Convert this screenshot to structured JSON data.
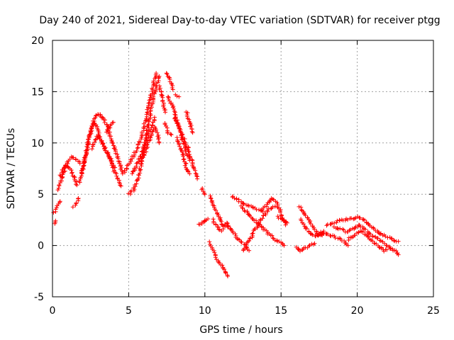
{
  "chart_data": {
    "type": "scatter",
    "title": "Day 240 of 2021, Sidereal Day-to-day VTEC variation (SDTVAR) for receiver ptgg",
    "xlabel": "GPS time / hours",
    "ylabel": "SDTVAR / TECUs",
    "xlim": [
      0,
      25
    ],
    "ylim": [
      -5,
      20
    ],
    "xticks": [
      0,
      5,
      10,
      15,
      20,
      25
    ],
    "yticks": [
      -5,
      0,
      5,
      10,
      15,
      20
    ],
    "x_tick_labels": [
      "0",
      "5",
      "10",
      "15",
      "20",
      "25"
    ],
    "y_tick_labels": [
      "-5",
      "0",
      "5",
      "10",
      "15",
      "20"
    ],
    "grid": true,
    "marker": "+",
    "series": [
      {
        "name": "SDTVAR",
        "color": "#ff0000",
        "tracks": [
          [
            [
              0.1,
              2.2
            ],
            [
              0.2,
              2.4
            ]
          ],
          [
            [
              0.1,
              3.2
            ],
            [
              0.3,
              3.8
            ],
            [
              0.5,
              4.3
            ]
          ],
          [
            [
              0.4,
              5.5
            ],
            [
              0.6,
              6.5
            ],
            [
              0.8,
              7.3
            ],
            [
              1.0,
              8.2
            ],
            [
              1.2,
              8.6
            ],
            [
              1.5,
              8.5
            ],
            [
              1.8,
              8.0
            ]
          ],
          [
            [
              0.5,
              6.8
            ],
            [
              0.7,
              7.5
            ],
            [
              0.9,
              7.9
            ],
            [
              1.1,
              7.6
            ],
            [
              1.3,
              7.0
            ],
            [
              1.5,
              6.3
            ],
            [
              1.6,
              5.9
            ]
          ],
          [
            [
              1.4,
              3.8
            ],
            [
              1.6,
              4.2
            ],
            [
              1.7,
              4.6
            ]
          ],
          [
            [
              1.8,
              6.2
            ],
            [
              2.0,
              7.5
            ],
            [
              2.2,
              9.0
            ],
            [
              2.4,
              10.5
            ],
            [
              2.6,
              11.5
            ],
            [
              2.8,
              12.5
            ],
            [
              3.0,
              12.8
            ],
            [
              3.2,
              12.5
            ]
          ],
          [
            [
              1.9,
              7.0
            ],
            [
              2.1,
              8.2
            ],
            [
              2.3,
              9.8
            ],
            [
              2.5,
              11.2
            ],
            [
              2.7,
              12.0
            ],
            [
              2.9,
              11.5
            ],
            [
              3.1,
              10.5
            ],
            [
              3.3,
              9.8
            ],
            [
              3.5,
              9.2
            ],
            [
              3.7,
              8.7
            ],
            [
              3.9,
              8.2
            ],
            [
              4.1,
              7.6
            ]
          ],
          [
            [
              2.6,
              9.5
            ],
            [
              2.8,
              10.2
            ],
            [
              3.0,
              10.8
            ],
            [
              3.3,
              10.0
            ],
            [
              3.6,
              9.0
            ],
            [
              3.9,
              7.8
            ],
            [
              4.2,
              6.8
            ],
            [
              4.5,
              5.8
            ]
          ],
          [
            [
              3.2,
              12.7
            ],
            [
              3.4,
              12.3
            ],
            [
              3.6,
              11.6
            ],
            [
              3.8,
              10.6
            ],
            [
              4.0,
              9.8
            ],
            [
              4.2,
              9.0
            ],
            [
              4.4,
              8.0
            ],
            [
              4.6,
              7.0
            ]
          ],
          [
            [
              3.6,
              11.0
            ],
            [
              3.8,
              11.8
            ],
            [
              4.0,
              12.0
            ]
          ],
          [
            [
              4.7,
              7.2
            ],
            [
              4.9,
              7.6
            ],
            [
              5.1,
              8.2
            ],
            [
              5.4,
              9.0
            ],
            [
              5.7,
              10.0
            ],
            [
              6.0,
              11.5
            ],
            [
              6.3,
              13.5
            ],
            [
              6.6,
              15.5
            ],
            [
              6.8,
              16.8
            ]
          ],
          [
            [
              5.0,
              5.0
            ],
            [
              5.3,
              5.4
            ],
            [
              5.6,
              6.5
            ],
            [
              5.9,
              8.5
            ],
            [
              6.2,
              11.0
            ],
            [
              6.5,
              13.5
            ],
            [
              6.8,
              15.5
            ],
            [
              7.0,
              16.5
            ]
          ],
          [
            [
              5.8,
              8.0
            ],
            [
              6.1,
              9.2
            ],
            [
              6.4,
              10.5
            ],
            [
              6.7,
              11.5
            ],
            [
              6.9,
              10.8
            ],
            [
              7.0,
              10.0
            ]
          ],
          [
            [
              5.2,
              7.0
            ],
            [
              5.5,
              7.8
            ],
            [
              5.8,
              8.8
            ],
            [
              6.1,
              10.0
            ],
            [
              6.4,
              11.2
            ],
            [
              6.7,
              12.5
            ]
          ],
          [
            [
              7.0,
              15.5
            ],
            [
              7.2,
              14.5
            ],
            [
              7.4,
              13.0
            ]
          ],
          [
            [
              7.4,
              12.0
            ],
            [
              7.6,
              11.0
            ],
            [
              7.8,
              10.8
            ]
          ],
          [
            [
              7.5,
              16.8
            ],
            [
              7.7,
              16.3
            ],
            [
              7.9,
              15.2
            ]
          ],
          [
            [
              7.6,
              14.5
            ],
            [
              7.8,
              13.8
            ],
            [
              8.0,
              13.0
            ],
            [
              8.2,
              12.0
            ],
            [
              8.4,
              11.0
            ],
            [
              8.6,
              10.0
            ],
            [
              8.8,
              9.0
            ],
            [
              9.0,
              8.3
            ]
          ],
          [
            [
              8.0,
              12.5
            ],
            [
              8.3,
              11.5
            ],
            [
              8.6,
              10.5
            ],
            [
              8.9,
              9.5
            ],
            [
              9.2,
              8.0
            ],
            [
              9.5,
              6.5
            ]
          ],
          [
            [
              8.2,
              10.5
            ],
            [
              8.4,
              9.5
            ],
            [
              8.6,
              8.5
            ],
            [
              8.8,
              7.5
            ],
            [
              9.0,
              7.0
            ]
          ],
          [
            [
              8.1,
              14.7
            ],
            [
              8.3,
              14.5
            ]
          ],
          [
            [
              8.8,
              13.0
            ],
            [
              9.0,
              12.0
            ],
            [
              9.2,
              11.0
            ]
          ],
          [
            [
              9.8,
              5.5
            ],
            [
              10.0,
              5.0
            ]
          ],
          [
            [
              9.6,
              2.0
            ],
            [
              9.9,
              2.3
            ],
            [
              10.2,
              2.6
            ]
          ],
          [
            [
              10.3,
              4.8
            ],
            [
              10.6,
              3.8
            ],
            [
              10.9,
              2.8
            ],
            [
              11.2,
              2.0
            ],
            [
              11.5,
              1.8
            ]
          ],
          [
            [
              10.5,
              2.5
            ],
            [
              10.8,
              1.8
            ],
            [
              11.1,
              1.5
            ],
            [
              11.4,
              2.2
            ],
            [
              11.7,
              1.6
            ],
            [
              12.0,
              1.0
            ],
            [
              12.3,
              0.5
            ],
            [
              12.6,
              0.0
            ],
            [
              12.9,
              -0.5
            ]
          ],
          [
            [
              10.3,
              0.3
            ],
            [
              10.5,
              -0.3
            ],
            [
              10.7,
              -1.0
            ],
            [
              10.9,
              -1.6
            ],
            [
              11.1,
              -2.0
            ],
            [
              11.3,
              -2.5
            ],
            [
              11.5,
              -3.0
            ]
          ],
          [
            [
              11.8,
              4.8
            ],
            [
              12.2,
              4.4
            ],
            [
              12.6,
              4.0
            ],
            [
              13.0,
              3.8
            ],
            [
              13.4,
              3.5
            ],
            [
              13.8,
              3.3
            ]
          ],
          [
            [
              12.4,
              3.8
            ],
            [
              12.8,
              3.2
            ],
            [
              13.2,
              2.6
            ],
            [
              13.6,
              2.0
            ],
            [
              14.0,
              1.4
            ],
            [
              14.4,
              0.9
            ],
            [
              14.8,
              0.4
            ],
            [
              15.2,
              0.0
            ]
          ],
          [
            [
              12.5,
              -0.5
            ],
            [
              12.8,
              0.2
            ],
            [
              13.1,
              1.0
            ],
            [
              13.4,
              1.8
            ],
            [
              13.7,
              2.6
            ],
            [
              14.0,
              3.2
            ],
            [
              14.3,
              3.6
            ],
            [
              14.6,
              3.8
            ]
          ],
          [
            [
              13.8,
              3.5
            ],
            [
              14.1,
              4.0
            ],
            [
              14.4,
              4.6
            ],
            [
              14.7,
              4.2
            ],
            [
              15.0,
              3.2
            ],
            [
              15.3,
              2.0
            ]
          ],
          [
            [
              14.8,
              2.8
            ],
            [
              15.1,
              2.5
            ],
            [
              15.4,
              2.2
            ]
          ],
          [
            [
              16.0,
              -0.2
            ],
            [
              16.3,
              -0.5
            ],
            [
              16.6,
              -0.2
            ],
            [
              16.9,
              0.0
            ],
            [
              17.2,
              0.2
            ]
          ],
          [
            [
              16.2,
              3.8
            ],
            [
              16.5,
              3.2
            ],
            [
              16.8,
              2.5
            ],
            [
              17.1,
              1.8
            ],
            [
              17.4,
              1.2
            ],
            [
              17.7,
              1.0
            ]
          ],
          [
            [
              16.3,
              2.5
            ],
            [
              16.6,
              1.8
            ],
            [
              16.9,
              1.2
            ],
            [
              17.2,
              0.9
            ],
            [
              17.5,
              1.1
            ],
            [
              17.8,
              1.4
            ]
          ],
          [
            [
              17.4,
              1.0
            ],
            [
              17.8,
              1.2
            ],
            [
              18.2,
              1.0
            ],
            [
              18.6,
              0.8
            ],
            [
              19.0,
              0.5
            ],
            [
              19.4,
              0.0
            ]
          ],
          [
            [
              18.0,
              2.0
            ],
            [
              18.4,
              2.2
            ],
            [
              18.8,
              2.4
            ],
            [
              19.2,
              2.5
            ],
            [
              19.6,
              2.6
            ],
            [
              20.0,
              2.8
            ],
            [
              20.4,
              2.5
            ],
            [
              20.8,
              2.0
            ],
            [
              21.2,
              1.5
            ],
            [
              21.6,
              1.1
            ],
            [
              22.0,
              0.8
            ],
            [
              22.4,
              0.5
            ],
            [
              22.7,
              0.4
            ]
          ],
          [
            [
              18.5,
              1.8
            ],
            [
              18.9,
              1.6
            ],
            [
              19.3,
              1.3
            ],
            [
              19.7,
              1.6
            ],
            [
              20.1,
              2.0
            ],
            [
              20.5,
              1.6
            ],
            [
              20.9,
              1.1
            ],
            [
              21.3,
              0.7
            ],
            [
              21.7,
              0.3
            ],
            [
              22.1,
              -0.2
            ],
            [
              22.5,
              -0.6
            ],
            [
              22.7,
              -0.9
            ]
          ],
          [
            [
              19.4,
              0.6
            ],
            [
              19.8,
              1.0
            ],
            [
              20.2,
              1.4
            ],
            [
              20.6,
              1.0
            ],
            [
              21.0,
              0.4
            ],
            [
              21.4,
              -0.1
            ],
            [
              21.8,
              -0.5
            ],
            [
              22.2,
              -0.3
            ]
          ]
        ]
      }
    ]
  }
}
